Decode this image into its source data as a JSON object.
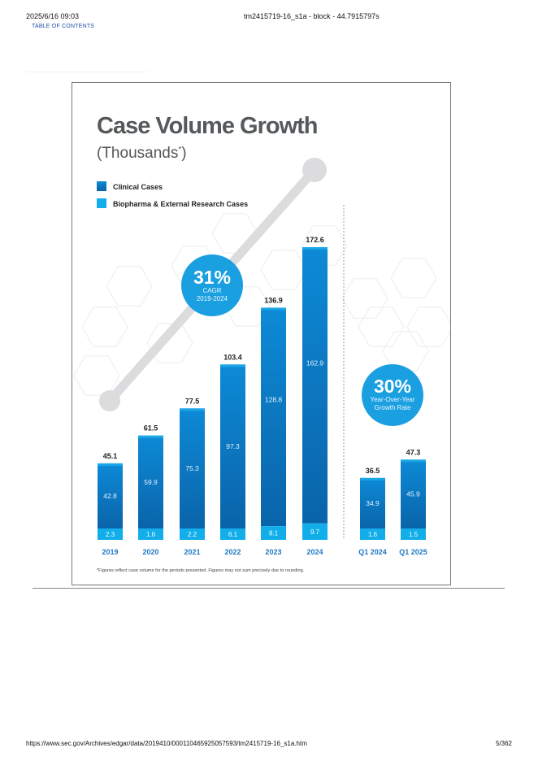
{
  "header": {
    "datetime": "2025/6/16 09:03",
    "document": "tm2415719-16_s1a - block - 44.7915797s",
    "toc_link": "TABLE OF CONTENTS"
  },
  "footer": {
    "url": "https://www.sec.gov/Archives/edgar/data/2019410/000110465925057593/tm2415719-16_s1a.htm",
    "page": "5/362"
  },
  "callouts": {
    "cagr": {
      "value": "31%",
      "line1": "CAGR",
      "line2": "2019-2024"
    },
    "yoy": {
      "value": "30%",
      "line1": "Year-Over-Year",
      "line2": "Growth Rate"
    }
  },
  "colors": {
    "clinical_top": "#0d8ad6",
    "clinical_bottom": "#0a64aa",
    "biopharma": "#12aeea",
    "bar_top": "#1ba6e6",
    "title": "#55595c",
    "year_label": "#1e78c4",
    "circle": "#1a9fe0",
    "trend": "#dcdcde"
  },
  "chart_data": {
    "type": "bar",
    "stacked": true,
    "title": "Case Volume Growth",
    "subtitle_main": "(Thousands",
    "subtitle_mark": "*",
    "subtitle_close": ")",
    "footnote": "*Figures reflect case volume for the periods presented. Figures may not sum precisely due to rounding.",
    "legend_placement": "top-left",
    "ylim": [
      0,
      180
    ],
    "groups": [
      {
        "name": "annual",
        "categories": [
          "2019",
          "2020",
          "2021",
          "2022",
          "2023",
          "2024"
        ]
      },
      {
        "name": "quarterly",
        "categories": [
          "Q1 2024",
          "Q1 2025"
        ]
      }
    ],
    "categories": [
      "2019",
      "2020",
      "2021",
      "2022",
      "2023",
      "2024",
      "Q1 2024",
      "Q1 2025"
    ],
    "series": [
      {
        "name": "Clinical Cases",
        "values": [
          42.8,
          59.9,
          75.3,
          97.3,
          128.8,
          162.9,
          34.9,
          45.9
        ]
      },
      {
        "name": "Biopharma & External Research Cases",
        "values": [
          2.3,
          1.6,
          2.2,
          6.1,
          8.1,
          9.7,
          1.6,
          1.5
        ]
      }
    ],
    "totals": [
      45.1,
      61.5,
      77.5,
      103.4,
      136.9,
      172.6,
      36.5,
      47.3
    ],
    "value_labels": {
      "clinical": [
        "42.8",
        "59.9",
        "75.3",
        "97.3",
        "128.8",
        "162.9",
        "34.9",
        "45.9"
      ],
      "biopharma": [
        "2.3",
        "1.6",
        "2.2",
        "6.1",
        "8.1",
        "9.7",
        "1.6",
        "1.5"
      ],
      "totals": [
        "45.1",
        "61.5",
        "77.5",
        "103.4",
        "136.9",
        "172.6",
        "36.5",
        "47.3"
      ]
    }
  }
}
